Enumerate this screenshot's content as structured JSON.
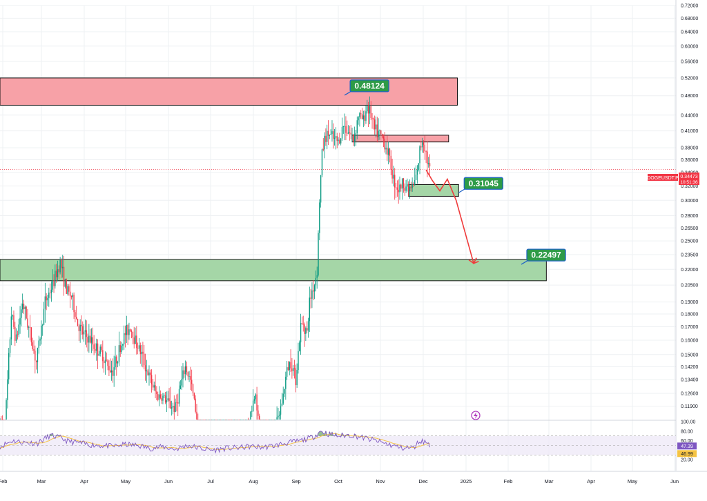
{
  "chart_data": [
    {
      "type": "candlestick",
      "symbol": "DOGEUSDT.P",
      "last_price": "0.34473",
      "countdown": "10:51:36",
      "price_scale": "log",
      "ylim": [
        0.112,
        0.72
      ],
      "y_ticks": [
        "0.72000",
        "0.68000",
        "0.64000",
        "0.60000",
        "0.56000",
        "0.52000",
        "0.48000",
        "0.44000",
        "0.41000",
        "0.38000",
        "0.36000",
        "0.34000",
        "0.32000",
        "0.30000",
        "0.28000",
        "0.26500",
        "0.25000",
        "0.23500",
        "0.22000",
        "0.20500",
        "0.19000",
        "0.18000",
        "0.17000",
        "0.16000",
        "0.15000",
        "0.14200",
        "0.13400",
        "0.12600",
        "0.11900"
      ],
      "x_ticks": [
        "Feb",
        "Mar",
        "Apr",
        "May",
        "Jun",
        "Jul",
        "Aug",
        "Sep",
        "Oct",
        "Nov",
        "Dec",
        "2025",
        "Feb",
        "Mar",
        "Apr",
        "May",
        "Jun"
      ],
      "price_path": [
        [
          0,
          0.11
        ],
        [
          4,
          0.108
        ],
        [
          9,
          0.18
        ],
        [
          13,
          0.16
        ],
        [
          18,
          0.19
        ],
        [
          24,
          0.165
        ],
        [
          29,
          0.145
        ],
        [
          36,
          0.19
        ],
        [
          42,
          0.205
        ],
        [
          48,
          0.228
        ],
        [
          53,
          0.2
        ],
        [
          57,
          0.195
        ],
        [
          62,
          0.172
        ],
        [
          66,
          0.165
        ],
        [
          72,
          0.16
        ],
        [
          76,
          0.155
        ],
        [
          82,
          0.15
        ],
        [
          86,
          0.142
        ],
        [
          90,
          0.14
        ],
        [
          94,
          0.15
        ],
        [
          100,
          0.165
        ],
        [
          104,
          0.17
        ],
        [
          108,
          0.16
        ],
        [
          113,
          0.15
        ],
        [
          117,
          0.14
        ],
        [
          121,
          0.132
        ],
        [
          125,
          0.125
        ],
        [
          130,
          0.124
        ],
        [
          135,
          0.12
        ],
        [
          140,
          0.118
        ],
        [
          144,
          0.13
        ],
        [
          148,
          0.142
        ],
        [
          152,
          0.133
        ],
        [
          156,
          0.118
        ],
        [
          160,
          0.1
        ],
        [
          166,
          0.098
        ],
        [
          172,
          0.1
        ],
        [
          178,
          0.104
        ],
        [
          184,
          0.102
        ],
        [
          190,
          0.104
        ],
        [
          196,
          0.108
        ],
        [
          200,
          0.115
        ],
        [
          204,
          0.128
        ],
        [
          206,
          0.112
        ],
        [
          210,
          0.103
        ],
        [
          214,
          0.1
        ],
        [
          218,
          0.104
        ],
        [
          222,
          0.112
        ],
        [
          226,
          0.125
        ],
        [
          229,
          0.14
        ],
        [
          232,
          0.146
        ],
        [
          236,
          0.135
        ],
        [
          240,
          0.17
        ],
        [
          242,
          0.173
        ],
        [
          245,
          0.165
        ],
        [
          247,
          0.19
        ],
        [
          249,
          0.2
        ],
        [
          251,
          0.206
        ],
        [
          253,
          0.22
        ],
        [
          255,
          0.3
        ],
        [
          257,
          0.37
        ],
        [
          259,
          0.395
        ],
        [
          262,
          0.405
        ],
        [
          266,
          0.395
        ],
        [
          270,
          0.39
        ],
        [
          274,
          0.42
        ],
        [
          278,
          0.41
        ],
        [
          282,
          0.395
        ],
        [
          286,
          0.44
        ],
        [
          290,
          0.43
        ],
        [
          293,
          0.46
        ],
        [
          296,
          0.44
        ],
        [
          299,
          0.41
        ],
        [
          302,
          0.405
        ],
        [
          306,
          0.395
        ],
        [
          310,
          0.37
        ],
        [
          314,
          0.33
        ],
        [
          318,
          0.315
        ],
        [
          322,
          0.325
        ],
        [
          326,
          0.315
        ],
        [
          330,
          0.32
        ],
        [
          333,
          0.34
        ],
        [
          335,
          0.375
        ],
        [
          337,
          0.395
        ],
        [
          339,
          0.385
        ],
        [
          341,
          0.358
        ],
        [
          343,
          0.345
        ]
      ],
      "rsi": {
        "ticks": [
          "100.00",
          "80.00",
          "60.00",
          "20.00"
        ],
        "band_high": 70,
        "band_low": 30,
        "current": "47.39",
        "signal": "46.99",
        "path": [
          [
            0,
            48
          ],
          [
            10,
            60
          ],
          [
            20,
            56
          ],
          [
            30,
            55
          ],
          [
            40,
            71
          ],
          [
            48,
            66
          ],
          [
            55,
            58
          ],
          [
            62,
            56
          ],
          [
            70,
            52
          ],
          [
            80,
            50
          ],
          [
            90,
            48
          ],
          [
            100,
            52
          ],
          [
            110,
            50
          ],
          [
            120,
            44
          ],
          [
            130,
            47
          ],
          [
            140,
            42
          ],
          [
            150,
            50
          ],
          [
            160,
            44
          ],
          [
            170,
            40
          ],
          [
            180,
            44
          ],
          [
            190,
            45
          ],
          [
            200,
            48
          ],
          [
            210,
            46
          ],
          [
            220,
            50
          ],
          [
            230,
            56
          ],
          [
            240,
            60
          ],
          [
            250,
            68
          ],
          [
            256,
            80
          ],
          [
            262,
            74
          ],
          [
            270,
            70
          ],
          [
            280,
            72
          ],
          [
            290,
            66
          ],
          [
            300,
            60
          ],
          [
            310,
            52
          ],
          [
            320,
            45
          ],
          [
            330,
            45
          ],
          [
            335,
            60
          ],
          [
            340,
            57
          ],
          [
            343,
            52
          ]
        ]
      },
      "annotations": [
        {
          "kind": "label",
          "text": "0.48124",
          "value": 0.48124,
          "bar": 275
        },
        {
          "kind": "label",
          "text": "0.31045",
          "value": 0.31045,
          "bar": 366
        },
        {
          "kind": "label",
          "text": "0.22497",
          "value": 0.22497,
          "bar": 416
        }
      ],
      "zones": [
        {
          "kind": "resistance",
          "from": 0.46,
          "to": 0.52,
          "bar_start": 0,
          "bar_end": 365
        },
        {
          "kind": "resistance",
          "from": 0.39,
          "to": 0.402,
          "bar_start": 281,
          "bar_end": 358
        },
        {
          "kind": "support",
          "from": 0.3055,
          "to": 0.322,
          "bar_start": 326,
          "bar_end": 366
        },
        {
          "kind": "support",
          "from": 0.209,
          "to": 0.23,
          "bar_start": 0,
          "bar_end": 436
        }
      ],
      "projection": [
        [
          340,
          0.344
        ],
        [
          345,
          0.328
        ],
        [
          351,
          0.313
        ],
        [
          357,
          0.33
        ],
        [
          364,
          0.3
        ],
        [
          378,
          0.226
        ],
        [
          382,
          0.228
        ]
      ],
      "colors": {
        "up": "#089981",
        "down": "#f23645",
        "resistance": "#f7a1a7",
        "support": "#a5d6a7",
        "label_bg": "#2e9b47",
        "label_border": "#1e63c6",
        "rsi": "#7e57c2",
        "rsi_ma": "#f5c343",
        "projection": "#ef3b3b"
      }
    }
  ]
}
